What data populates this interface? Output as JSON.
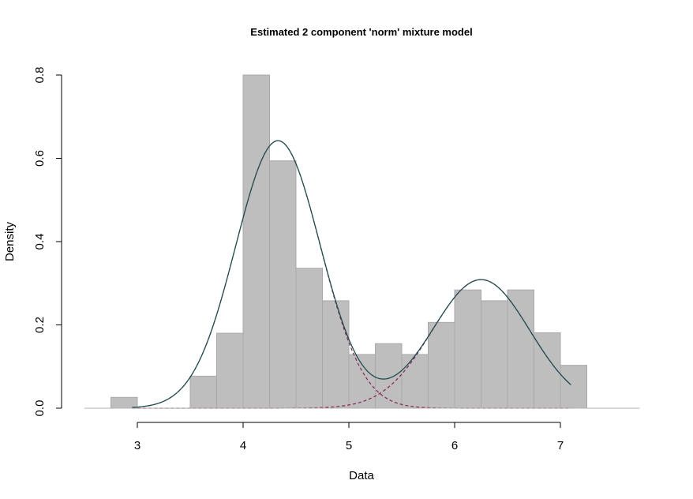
{
  "chart_data": {
    "type": "bar",
    "title": "Estimated 2 component 'norm' mixture model",
    "xlabel": "Data",
    "ylabel": "Density",
    "xlim": [
      2.5,
      7.75
    ],
    "ylim": [
      0,
      0.8
    ],
    "x_ticks": [
      "3",
      "4",
      "5",
      "6",
      "7"
    ],
    "y_ticks": [
      "0.0",
      "0.2",
      "0.4",
      "0.6",
      "0.8"
    ],
    "histogram": {
      "bin_width": 0.25,
      "bins": [
        {
          "start": 2.75,
          "density": 0.026
        },
        {
          "start": 3.0,
          "density": 0
        },
        {
          "start": 3.25,
          "density": 0
        },
        {
          "start": 3.5,
          "density": 0.077
        },
        {
          "start": 3.75,
          "density": 0.18
        },
        {
          "start": 4.0,
          "density": 0.8
        },
        {
          "start": 4.25,
          "density": 0.594
        },
        {
          "start": 4.5,
          "density": 0.336
        },
        {
          "start": 4.75,
          "density": 0.258
        },
        {
          "start": 5.0,
          "density": 0.129
        },
        {
          "start": 5.25,
          "density": 0.155
        },
        {
          "start": 5.5,
          "density": 0.129
        },
        {
          "start": 5.75,
          "density": 0.206
        },
        {
          "start": 6.0,
          "density": 0.284
        },
        {
          "start": 6.25,
          "density": 0.258
        },
        {
          "start": 6.5,
          "density": 0.284
        },
        {
          "start": 6.75,
          "density": 0.181
        },
        {
          "start": 7.0,
          "density": 0.103
        }
      ],
      "fill": "#bebebe",
      "stroke": "#a9a9a9"
    },
    "mixture": {
      "curve_range": [
        2.95,
        7.1
      ],
      "components": [
        {
          "lambda": 0.644,
          "mu": 4.33,
          "sigma": 0.4,
          "color": "#8b2252"
        },
        {
          "lambda": 0.356,
          "mu": 6.25,
          "sigma": 0.46,
          "color": "#8b2252"
        }
      ],
      "total_color": "#1f4e4e"
    }
  }
}
